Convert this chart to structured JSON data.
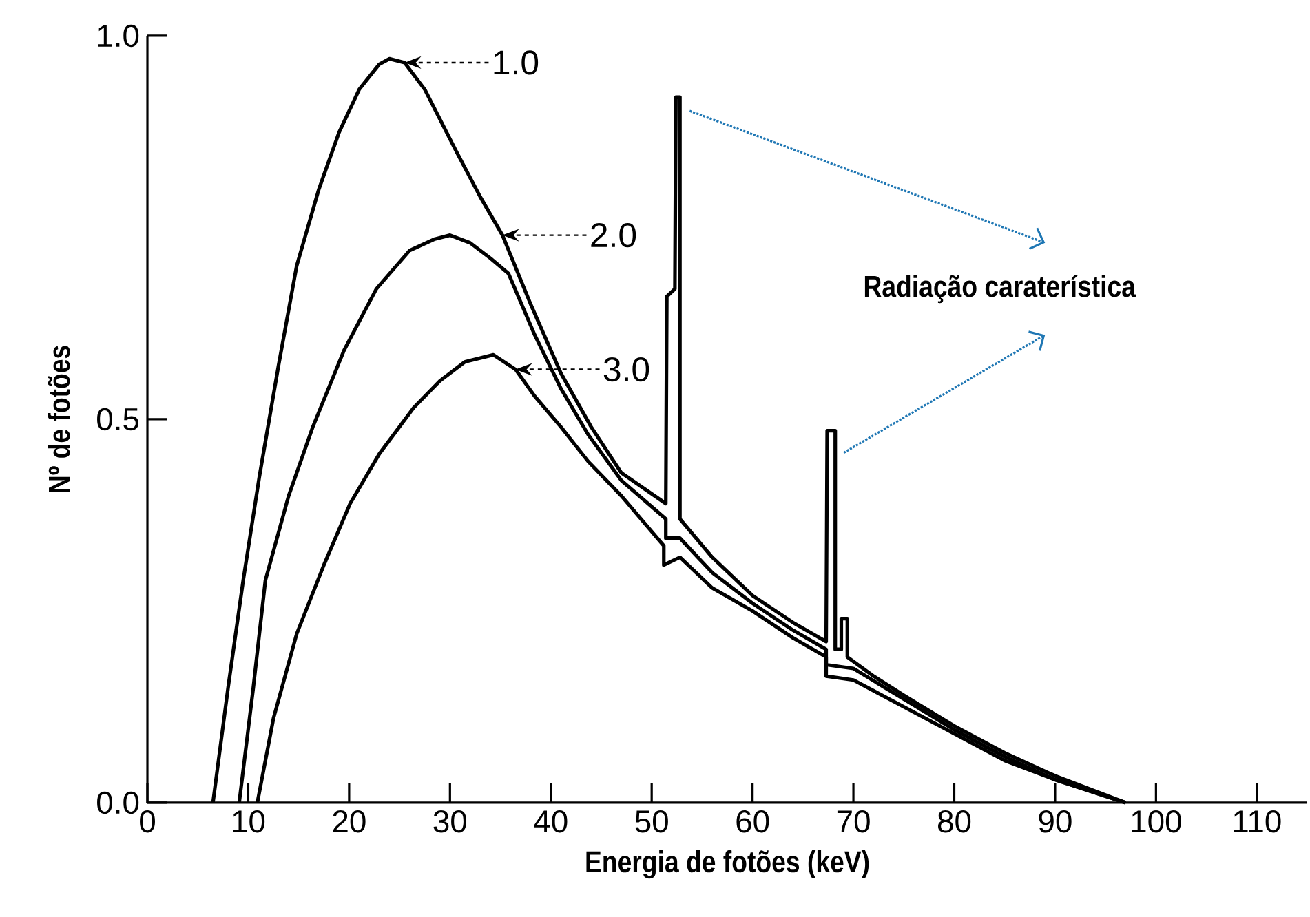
{
  "chart_data": {
    "type": "line",
    "xlabel": "Energia de fotões (keV)",
    "ylabel": "Nº de fotões",
    "xlim": [
      0,
      115
    ],
    "ylim": [
      0,
      1.0
    ],
    "xticks": [
      0,
      10,
      20,
      30,
      40,
      50,
      60,
      70,
      80,
      90,
      100,
      110
    ],
    "yticks": [
      {
        "value": 0,
        "label": "0.0"
      },
      {
        "value": 0.5,
        "label": "0.5"
      },
      {
        "value": 1.0,
        "label": "1.0"
      }
    ],
    "marker": "none",
    "line_style": "solid",
    "annotations": [
      {
        "text": "1.0",
        "x": 25.5,
        "y": 0.965
      },
      {
        "text": "2.0",
        "x": 35.2,
        "y": 0.74
      },
      {
        "text": "3.0",
        "x": 36.5,
        "y": 0.565
      },
      "Radiação caraterística"
    ],
    "series": [
      {
        "color": "#000000",
        "x": [
          6.5,
          8,
          9.5,
          11.1,
          13,
          14.8,
          17,
          19,
          21,
          23,
          24,
          25.5,
          27.5,
          30.6,
          33,
          35.2,
          38,
          41,
          44,
          47,
          51.4,
          51.5,
          52.3,
          52.4,
          52.8,
          52.8,
          56,
          60,
          64,
          67.3,
          67.4,
          68.2,
          68.2,
          68.8,
          68.8,
          69.4,
          69.4,
          72,
          75,
          80,
          85,
          90,
          97
        ],
        "values": [
          0,
          0.15,
          0.29,
          0.425,
          0.57,
          0.7,
          0.8,
          0.874,
          0.93,
          0.963,
          0.97,
          0.965,
          0.93,
          0.85,
          0.79,
          0.74,
          0.65,
          0.56,
          0.49,
          0.43,
          0.39,
          0.66,
          0.67,
          0.92,
          0.92,
          0.37,
          0.32,
          0.27,
          0.235,
          0.21,
          0.485,
          0.485,
          0.2,
          0.2,
          0.24,
          0.24,
          0.19,
          0.165,
          0.14,
          0.1,
          0.065,
          0.035,
          0
        ]
      },
      {
        "color": "#000000",
        "x": [
          9.1,
          10.5,
          11.7,
          14,
          16.4,
          19.5,
          22.7,
          26,
          28.5,
          30,
          32,
          34,
          35.8,
          38.4,
          41,
          43.7,
          47,
          51.4,
          51.4,
          52.8,
          56,
          60,
          64,
          67.3,
          67.3,
          70,
          75,
          80,
          85,
          90,
          97
        ],
        "values": [
          0,
          0.15,
          0.29,
          0.4,
          0.49,
          0.59,
          0.67,
          0.72,
          0.735,
          0.74,
          0.73,
          0.71,
          0.69,
          0.61,
          0.54,
          0.48,
          0.42,
          0.37,
          0.345,
          0.345,
          0.3,
          0.26,
          0.225,
          0.2,
          0.18,
          0.175,
          0.135,
          0.095,
          0.06,
          0.03,
          0
        ]
      },
      {
        "color": "#000000",
        "x": [
          10.9,
          12.5,
          14.8,
          17.5,
          20.1,
          23,
          26.4,
          29,
          31.5,
          34.3,
          36.5,
          38.4,
          41,
          43.7,
          47,
          51.2,
          51.2,
          52.8,
          56,
          60,
          64,
          67.3,
          67.3,
          70,
          75,
          80,
          85,
          90,
          97
        ],
        "values": [
          0,
          0.11,
          0.22,
          0.31,
          0.39,
          0.455,
          0.515,
          0.55,
          0.575,
          0.584,
          0.565,
          0.53,
          0.49,
          0.445,
          0.4,
          0.335,
          0.31,
          0.32,
          0.28,
          0.25,
          0.215,
          0.19,
          0.165,
          0.16,
          0.125,
          0.09,
          0.055,
          0.03,
          0
        ]
      }
    ]
  }
}
